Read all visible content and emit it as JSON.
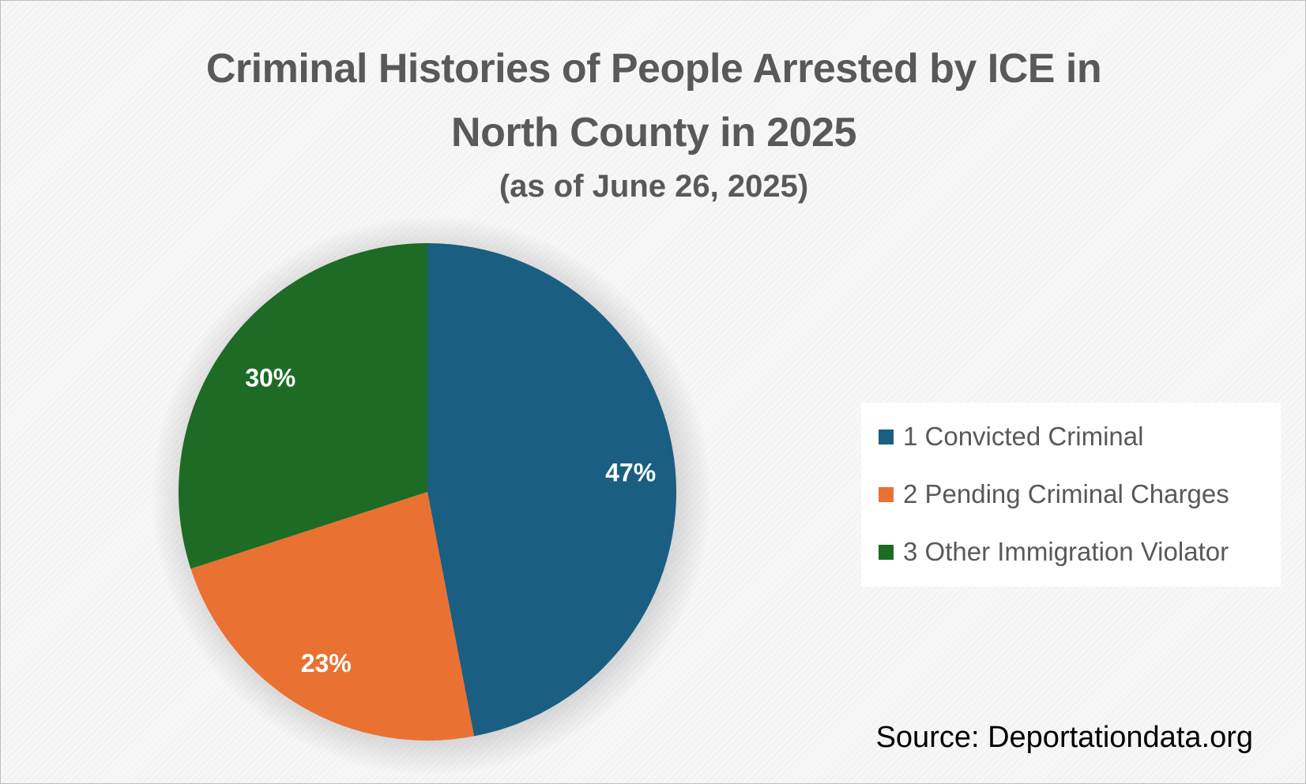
{
  "chart_data": {
    "type": "pie",
    "title_lines": [
      "Criminal Histories of People Arrested by ICE in",
      "North County in 2025"
    ],
    "subtitle": "(as of June 26, 2025)",
    "categories": [
      "1 Convicted Criminal",
      "2 Pending Criminal Charges",
      "3 Other Immigration Violator"
    ],
    "values": [
      47,
      23,
      30
    ],
    "data_labels": [
      "47%",
      "23%",
      "30%"
    ],
    "colors": [
      "#1a5e82",
      "#e97132",
      "#1d6b25"
    ],
    "legend_position": "right"
  },
  "source": "Source: Deportationdata.org"
}
